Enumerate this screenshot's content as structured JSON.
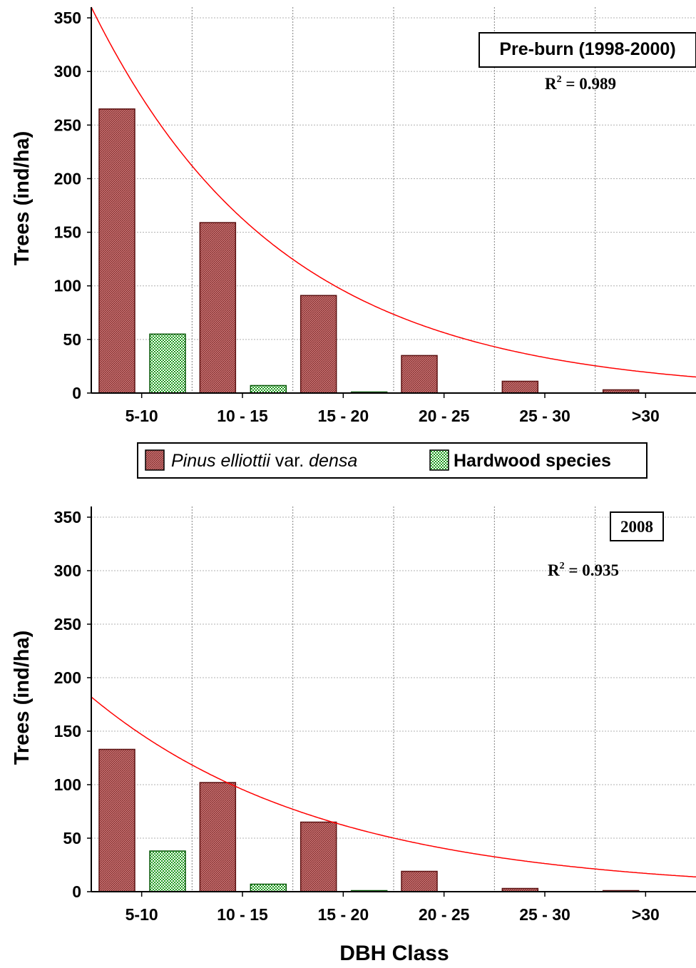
{
  "chart_data": [
    {
      "type": "bar",
      "title": "Pre-burn (1998-2000)",
      "annotation": {
        "r2_prefix": "R",
        "r2_sup": "2",
        "r2_suffix": " = 0.989"
      },
      "ylabel": "Trees (ind/ha)",
      "xlabel": "",
      "categories": [
        "5-10",
        "10 - 15",
        "15 - 20",
        "20 - 25",
        "25 - 30",
        ">30"
      ],
      "series": [
        {
          "name": "Pinus elliottii var. densa",
          "values": [
            265,
            159,
            91,
            35,
            11,
            3
          ],
          "color": "#a03c3c"
        },
        {
          "name": "Hardwood species",
          "values": [
            55,
            7,
            1,
            0,
            0,
            0
          ],
          "color": "#2e9e2e"
        }
      ],
      "fit_curve": {
        "type": "exponential",
        "color": "#ff0000",
        "a": 360,
        "b": 0.53
      },
      "ylim": [
        0,
        360
      ],
      "yticks": [
        0,
        50,
        100,
        150,
        200,
        250,
        300,
        350
      ],
      "grid": true
    },
    {
      "type": "bar",
      "title": "2008",
      "annotation": {
        "r2_prefix": "R",
        "r2_sup": "2",
        "r2_suffix": " = 0.935"
      },
      "ylabel": "Trees (ind/ha)",
      "xlabel": "DBH Class",
      "categories": [
        "5-10",
        "10 - 15",
        "15 - 20",
        "20 - 25",
        "25 - 30",
        ">30"
      ],
      "series": [
        {
          "name": "Pinus elliottii var. densa",
          "values": [
            133,
            102,
            65,
            19,
            3,
            1
          ],
          "color": "#a03c3c"
        },
        {
          "name": "Hardwood species",
          "values": [
            38,
            7,
            1,
            0,
            0,
            0
          ],
          "color": "#2e9e2e"
        }
      ],
      "fit_curve": {
        "type": "exponential",
        "color": "#ff0000",
        "a": 182,
        "b": 0.43
      },
      "ylim": [
        0,
        360
      ],
      "yticks": [
        0,
        50,
        100,
        150,
        200,
        250,
        300,
        350
      ],
      "grid": true
    }
  ],
  "legend": {
    "placement": "between-panels",
    "item1_italic_a": "Pinus elliottii",
    "item1_normal": " var. ",
    "item1_italic_b": "densa",
    "item2": "Hardwood species"
  },
  "colors": {
    "pinus": "#a03c3c",
    "hardwood": "#2e9e2e",
    "fit": "#ff0000",
    "grid": "#b0b0b0"
  }
}
